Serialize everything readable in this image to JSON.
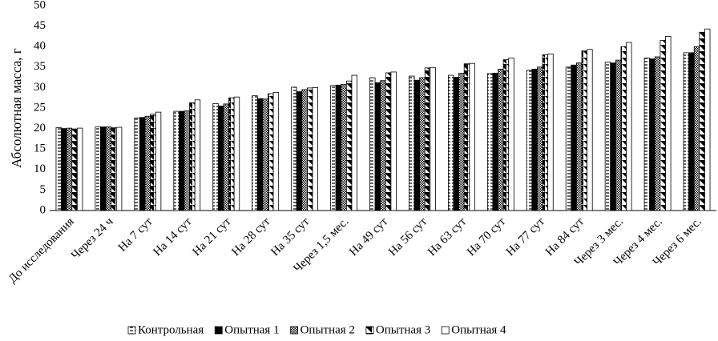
{
  "chart_data": {
    "type": "bar",
    "y_label": "Абсолютная масса, г",
    "categories": [
      "До исследования",
      "Через 24 ч",
      "На 7 сут",
      "На 14 сут",
      "На 21 сут",
      "На 28 сут",
      "На 35 сут",
      "Через 1,5 мес.",
      "На 49 сут",
      "На 56 сут",
      "На 63 сут",
      "На 70 сут",
      "На 77 сут",
      "На 84 сут",
      "Через 3 мес.",
      "Через 4 мес.",
      "Через 6 мес."
    ],
    "series": [
      {
        "name": "Контрольная",
        "color": "#000000",
        "values": [
          20.2,
          20.4,
          22.6,
          24.2,
          26.1,
          28.0,
          30.1,
          30.5,
          32.4,
          32.8,
          33.0,
          33.4,
          34.2,
          35.0,
          36.2,
          37.2,
          38.5
        ]
      },
      {
        "name": "Опытная 1",
        "color": "#000000",
        "values": [
          20.0,
          20.4,
          22.7,
          24.2,
          25.5,
          27.3,
          29.0,
          30.6,
          31.2,
          31.8,
          32.5,
          33.5,
          34.5,
          35.5,
          36.0,
          37.0,
          38.5
        ]
      },
      {
        "name": "Опытная 2",
        "color": "#000000",
        "values": [
          20.1,
          20.4,
          23.0,
          24.3,
          26.0,
          27.2,
          29.5,
          30.8,
          31.7,
          32.4,
          33.5,
          34.5,
          35.0,
          36.0,
          36.7,
          37.5,
          40.0
        ]
      },
      {
        "name": "Опытная 3",
        "color": "#000000",
        "values": [
          19.9,
          20.2,
          23.5,
          26.3,
          27.5,
          28.5,
          29.9,
          31.6,
          33.6,
          34.8,
          35.8,
          36.8,
          38.0,
          39.0,
          40.0,
          41.5,
          43.5
        ]
      },
      {
        "name": "Опытная 4",
        "color": "#000000",
        "values": [
          20.1,
          20.3,
          24.0,
          27.0,
          27.7,
          28.8,
          30.0,
          33.0,
          33.8,
          34.9,
          35.9,
          37.2,
          38.2,
          39.3,
          41.0,
          42.5,
          44.3
        ]
      }
    ],
    "ylim": [
      0,
      50
    ],
    "yticks": [
      0,
      5,
      10,
      15,
      20,
      25,
      30,
      35,
      40,
      45,
      50
    ],
    "grid": false
  }
}
